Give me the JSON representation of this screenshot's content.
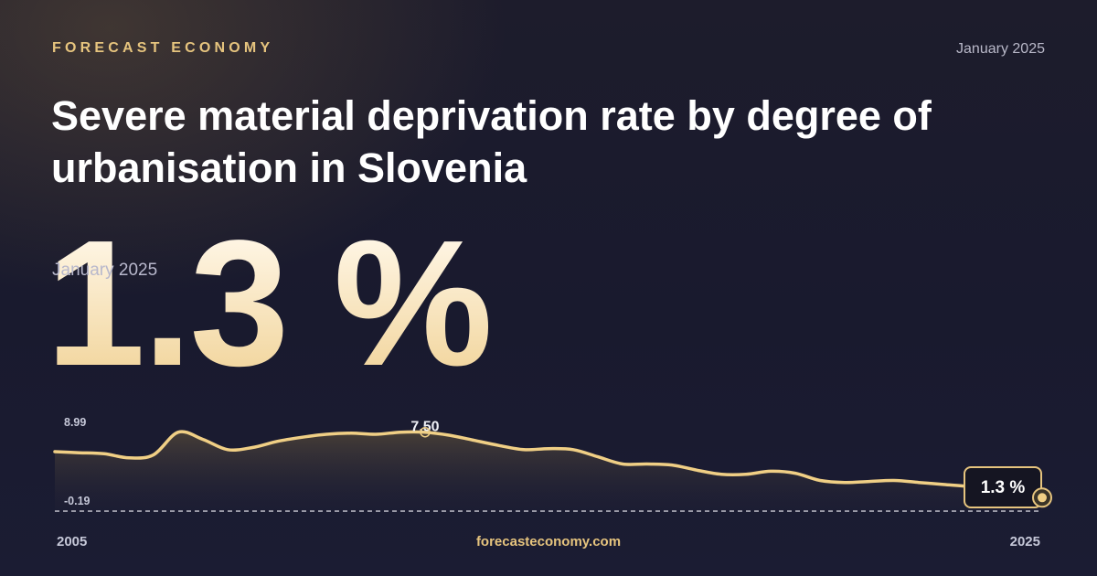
{
  "header": {
    "brand": "FORECAST ECONOMY",
    "date": "January 2025"
  },
  "title": "Severe material deprivation rate by degree of urbanisation in Slovenia",
  "headline": {
    "value": "1.3 %",
    "date": "January 2025"
  },
  "footer": {
    "url": "forecasteconomy.com"
  },
  "colors": {
    "accent": "#e6c47e",
    "line": "#f0cf85",
    "background": "#1b1b2f"
  },
  "chart_data": {
    "type": "area",
    "x_start_label": "2005",
    "x_end_label": "2025",
    "y_max_label": "8.99",
    "y_min_label": "-0.19",
    "peak_label": "7.50",
    "last_label": "1.3 %",
    "ylim": [
      -0.19,
      8.99
    ],
    "x": [
      2005.0,
      2005.5,
      2006.0,
      2006.5,
      2007.0,
      2007.5,
      2008.0,
      2008.5,
      2009.0,
      2009.5,
      2010.0,
      2010.5,
      2011.0,
      2011.5,
      2012.0,
      2012.5,
      2013.0,
      2013.5,
      2014.0,
      2014.5,
      2015.0,
      2015.5,
      2016.0,
      2016.5,
      2017.0,
      2017.5,
      2018.0,
      2018.5,
      2019.0,
      2019.5,
      2020.0,
      2020.5,
      2021.0,
      2021.5,
      2022.0,
      2022.5,
      2023.0,
      2023.5,
      2024.0,
      2024.5,
      2025.0
    ],
    "values": [
      5.6,
      5.5,
      5.4,
      5.0,
      5.3,
      7.5,
      6.8,
      5.8,
      6.0,
      6.6,
      7.0,
      7.3,
      7.4,
      7.3,
      7.5,
      7.5,
      7.2,
      6.7,
      6.2,
      5.8,
      5.9,
      5.8,
      5.1,
      4.4,
      4.4,
      4.3,
      3.8,
      3.4,
      3.4,
      3.7,
      3.5,
      2.8,
      2.6,
      2.7,
      2.8,
      2.6,
      2.4,
      2.2,
      1.8,
      1.5,
      1.3
    ],
    "peak_year": 2012.5,
    "last": 1.3,
    "grid": false,
    "legend": "none"
  }
}
